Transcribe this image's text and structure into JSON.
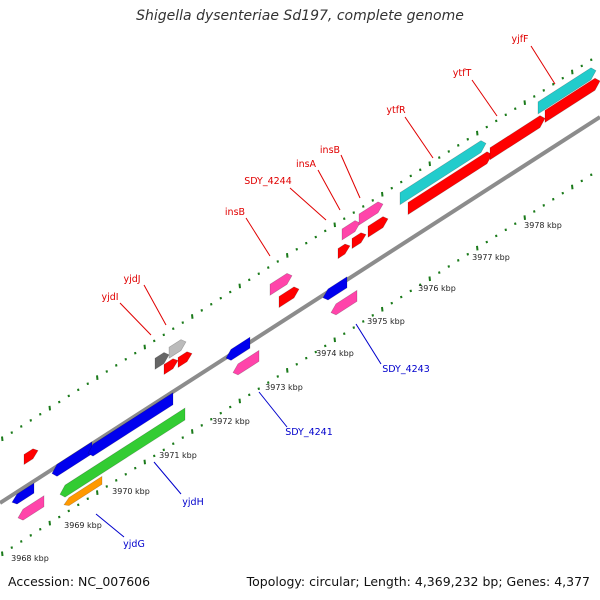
{
  "title": "Shigella dysenteriae Sd197, complete genome",
  "accession": "Accession: NC_007606",
  "summary": "Topology: circular; Length: 4,369,232 bp; Genes: 4,377",
  "colors": {
    "backbone": "#8c8c8c",
    "dots": "#1a7a1a",
    "forward_label": "#e00000",
    "reverse_label": "#0000cc",
    "red": "#ff0000",
    "pink": "#ff44aa",
    "blue": "#0000ee",
    "cyan": "#22cccc",
    "green": "#33cc33",
    "orange": "#ff9900",
    "darkgray": "#666666",
    "lightgray": "#bbbbbb"
  },
  "kbp_ticks": [
    "3968 kbp",
    "3969 kbp",
    "3970 kbp",
    "3971 kbp",
    "3972 kbp",
    "3973 kbp",
    "3974 kbp",
    "3975 kbp",
    "3976 kbp",
    "3977 kbp",
    "3978 kbp"
  ],
  "forward_labels": [
    "yjdI",
    "yjdJ",
    "insB",
    "SDY_4244",
    "insA",
    "insB",
    "ytfR",
    "ytfT",
    "yjfF"
  ],
  "reverse_labels": [
    "yjdG",
    "yjdH",
    "SDY_4241",
    "SDY_4243"
  ]
}
